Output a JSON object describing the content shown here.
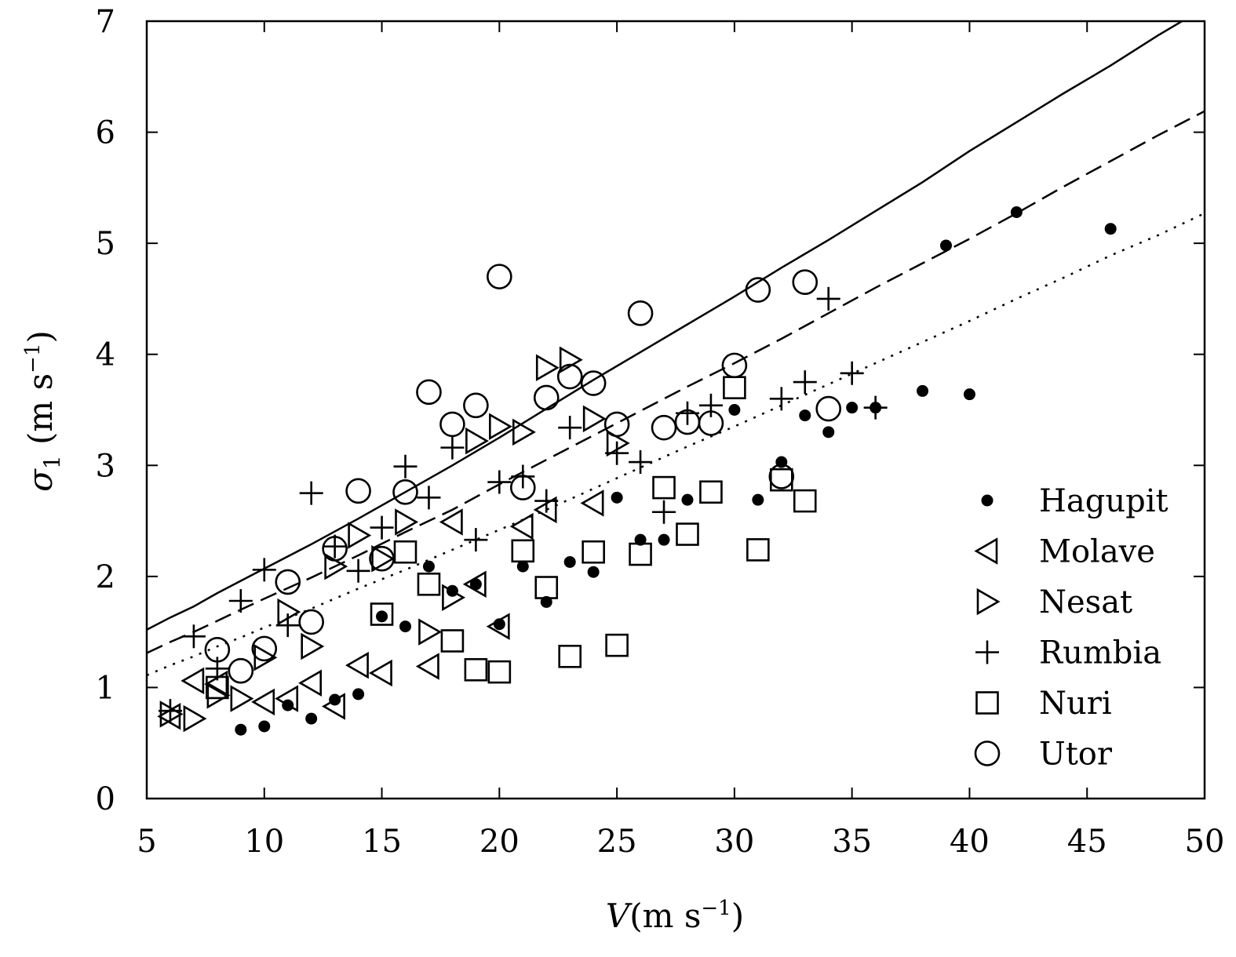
{
  "chart_data": {
    "type": "scatter",
    "xlabel": {
      "symbol": "V",
      "unit_prefix": "(m s",
      "unit_exp": "−1",
      "unit_suffix": ")"
    },
    "ylabel": {
      "symbol": "σ",
      "subscript": "1",
      "unit_prefix": "(m s",
      "unit_exp": "−1",
      "unit_suffix": ")"
    },
    "xlim": [
      5,
      50
    ],
    "ylim": [
      0,
      7
    ],
    "xticks": [
      "5",
      "10",
      "15",
      "20",
      "25",
      "30",
      "35",
      "40",
      "45",
      "50"
    ],
    "yticks": [
      "0",
      "1",
      "2",
      "3",
      "4",
      "5",
      "6",
      "7"
    ],
    "grid": false,
    "legend_position": "bottom-right",
    "series": [
      {
        "name": "Hagupit",
        "marker": "filled-circle",
        "points": [
          [
            9,
            0.62
          ],
          [
            10,
            0.65
          ],
          [
            11,
            0.84
          ],
          [
            12,
            0.72
          ],
          [
            13,
            0.89
          ],
          [
            14,
            0.94
          ],
          [
            15,
            1.64
          ],
          [
            16,
            1.55
          ],
          [
            17,
            2.09
          ],
          [
            18,
            1.87
          ],
          [
            19,
            1.93
          ],
          [
            20,
            1.57
          ],
          [
            21,
            2.09
          ],
          [
            22,
            1.77
          ],
          [
            23,
            2.13
          ],
          [
            24,
            2.04
          ],
          [
            25,
            2.71
          ],
          [
            26,
            2.33
          ],
          [
            27,
            2.33
          ],
          [
            28,
            2.69
          ],
          [
            30,
            3.5
          ],
          [
            31,
            2.69
          ],
          [
            32,
            3.03
          ],
          [
            33,
            3.45
          ],
          [
            34,
            3.3
          ],
          [
            35,
            3.52
          ],
          [
            36,
            3.52
          ],
          [
            38,
            3.67
          ],
          [
            40,
            3.64
          ],
          [
            39,
            4.98
          ],
          [
            42,
            5.28
          ],
          [
            46,
            5.13
          ]
        ]
      },
      {
        "name": "Molave",
        "marker": "left-triangle",
        "points": [
          [
            6,
            0.74
          ],
          [
            7,
            1.06
          ],
          [
            8,
            1.03
          ],
          [
            10,
            0.87
          ],
          [
            11,
            0.9
          ],
          [
            12,
            1.04
          ],
          [
            13,
            0.83
          ],
          [
            14,
            1.2
          ],
          [
            15,
            1.13
          ],
          [
            17,
            1.19
          ],
          [
            18,
            2.49
          ],
          [
            19,
            1.93
          ],
          [
            20,
            1.55
          ],
          [
            21,
            2.45
          ],
          [
            22,
            2.6
          ],
          [
            24,
            2.66
          ]
        ]
      },
      {
        "name": "Nesat",
        "marker": "right-triangle",
        "points": [
          [
            6,
            0.76
          ],
          [
            7,
            0.72
          ],
          [
            8,
            0.93
          ],
          [
            9,
            0.9
          ],
          [
            10,
            1.27
          ],
          [
            11,
            1.68
          ],
          [
            12,
            1.37
          ],
          [
            13,
            2.09
          ],
          [
            14,
            2.37
          ],
          [
            15,
            2.16
          ],
          [
            16,
            2.49
          ],
          [
            17,
            1.5
          ],
          [
            18,
            1.81
          ],
          [
            19,
            3.22
          ],
          [
            20,
            3.35
          ],
          [
            21,
            3.3
          ],
          [
            22,
            3.88
          ],
          [
            23,
            3.95
          ],
          [
            24,
            3.42
          ],
          [
            25,
            3.2
          ]
        ]
      },
      {
        "name": "Rumbia",
        "marker": "plus",
        "points": [
          [
            6,
            0.79
          ],
          [
            7,
            1.46
          ],
          [
            8,
            1.17
          ],
          [
            9,
            1.78
          ],
          [
            10,
            2.06
          ],
          [
            11,
            1.56
          ],
          [
            12,
            2.75
          ],
          [
            13,
            2.27
          ],
          [
            14,
            2.05
          ],
          [
            15,
            2.44
          ],
          [
            16,
            2.99
          ],
          [
            17,
            2.71
          ],
          [
            18,
            3.16
          ],
          [
            19,
            2.33
          ],
          [
            20,
            2.85
          ],
          [
            21,
            2.9
          ],
          [
            22,
            2.68
          ],
          [
            23,
            3.34
          ],
          [
            25,
            3.11
          ],
          [
            26,
            3.03
          ],
          [
            27,
            2.58
          ],
          [
            28,
            3.47
          ],
          [
            29,
            3.54
          ],
          [
            32,
            3.6
          ],
          [
            33,
            3.75
          ],
          [
            34,
            4.5
          ],
          [
            35,
            3.83
          ],
          [
            36,
            3.52
          ]
        ]
      },
      {
        "name": "Nuri",
        "marker": "square",
        "points": [
          [
            8,
            1.0
          ],
          [
            15,
            1.66
          ],
          [
            16,
            2.22
          ],
          [
            17,
            1.93
          ],
          [
            18,
            1.42
          ],
          [
            19,
            1.16
          ],
          [
            20,
            1.14
          ],
          [
            21,
            2.23
          ],
          [
            22,
            1.9
          ],
          [
            23,
            1.28
          ],
          [
            24,
            2.22
          ],
          [
            25,
            1.38
          ],
          [
            26,
            2.2
          ],
          [
            27,
            2.8
          ],
          [
            28,
            2.38
          ],
          [
            29,
            2.76
          ],
          [
            30,
            3.7
          ],
          [
            31,
            2.24
          ],
          [
            32,
            2.87
          ],
          [
            33,
            2.68
          ]
        ]
      },
      {
        "name": "Utor",
        "marker": "open-circle",
        "points": [
          [
            8,
            1.34
          ],
          [
            9,
            1.15
          ],
          [
            10,
            1.35
          ],
          [
            11,
            1.95
          ],
          [
            12,
            1.59
          ],
          [
            13,
            2.25
          ],
          [
            14,
            2.77
          ],
          [
            15,
            2.16
          ],
          [
            16,
            2.76
          ],
          [
            17,
            3.66
          ],
          [
            18,
            3.37
          ],
          [
            19,
            3.54
          ],
          [
            20,
            4.7
          ],
          [
            21,
            2.8
          ],
          [
            22,
            3.61
          ],
          [
            23,
            3.8
          ],
          [
            24,
            3.74
          ],
          [
            25,
            3.37
          ],
          [
            26,
            4.37
          ],
          [
            27,
            3.34
          ],
          [
            28,
            3.39
          ],
          [
            29,
            3.38
          ],
          [
            30,
            3.9
          ],
          [
            31,
            4.58
          ],
          [
            32,
            2.9
          ],
          [
            33,
            4.65
          ],
          [
            34,
            3.51
          ]
        ]
      }
    ],
    "lines": [
      {
        "style": "solid",
        "points": [
          [
            5,
            1.52
          ],
          [
            6,
            1.63
          ],
          [
            7,
            1.73
          ],
          [
            8,
            1.85
          ],
          [
            9,
            1.96
          ],
          [
            10,
            2.07
          ],
          [
            12,
            2.29
          ],
          [
            14,
            2.52
          ],
          [
            16,
            2.76
          ],
          [
            18,
            3.0
          ],
          [
            20,
            3.25
          ],
          [
            22,
            3.51
          ],
          [
            24,
            3.77
          ],
          [
            26,
            4.02
          ],
          [
            28,
            4.27
          ],
          [
            30,
            4.52
          ],
          [
            32,
            4.78
          ],
          [
            34,
            5.03
          ],
          [
            36,
            5.29
          ],
          [
            38,
            5.55
          ],
          [
            40,
            5.83
          ],
          [
            42,
            6.09
          ],
          [
            44,
            6.35
          ],
          [
            46,
            6.6
          ],
          [
            48,
            6.87
          ],
          [
            50,
            7.12
          ]
        ]
      },
      {
        "style": "dashed",
        "points": [
          [
            5,
            1.31
          ],
          [
            6,
            1.41
          ],
          [
            7,
            1.5
          ],
          [
            8,
            1.6
          ],
          [
            9,
            1.7
          ],
          [
            10,
            1.8
          ],
          [
            12,
            1.99
          ],
          [
            14,
            2.19
          ],
          [
            16,
            2.4
          ],
          [
            18,
            2.6
          ],
          [
            20,
            2.83
          ],
          [
            22,
            3.05
          ],
          [
            24,
            3.27
          ],
          [
            26,
            3.49
          ],
          [
            28,
            3.71
          ],
          [
            30,
            3.92
          ],
          [
            32,
            4.14
          ],
          [
            34,
            4.37
          ],
          [
            36,
            4.6
          ],
          [
            38,
            4.82
          ],
          [
            40,
            5.04
          ],
          [
            42,
            5.27
          ],
          [
            44,
            5.51
          ],
          [
            46,
            5.74
          ],
          [
            48,
            5.97
          ],
          [
            50,
            6.19
          ]
        ]
      },
      {
        "style": "dotted",
        "points": [
          [
            5,
            1.11
          ],
          [
            6,
            1.2
          ],
          [
            7,
            1.28
          ],
          [
            8,
            1.37
          ],
          [
            9,
            1.45
          ],
          [
            10,
            1.54
          ],
          [
            12,
            1.71
          ],
          [
            14,
            1.89
          ],
          [
            16,
            2.06
          ],
          [
            18,
            2.24
          ],
          [
            20,
            2.42
          ],
          [
            22,
            2.6
          ],
          [
            24,
            2.79
          ],
          [
            26,
            2.98
          ],
          [
            28,
            3.17
          ],
          [
            30,
            3.35
          ],
          [
            32,
            3.54
          ],
          [
            34,
            3.73
          ],
          [
            36,
            3.92
          ],
          [
            38,
            4.11
          ],
          [
            40,
            4.3
          ],
          [
            42,
            4.5
          ],
          [
            44,
            4.69
          ],
          [
            46,
            4.89
          ],
          [
            48,
            5.07
          ],
          [
            50,
            5.27
          ]
        ]
      }
    ]
  }
}
